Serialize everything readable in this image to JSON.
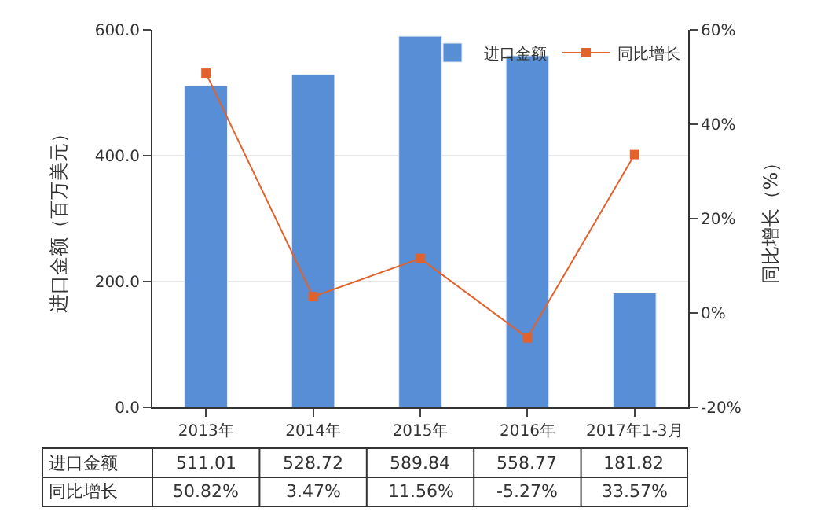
{
  "chart_data": {
    "type": "bar",
    "categories": [
      "2013年",
      "2014年",
      "2015年",
      "2016年",
      "2017年1-3月"
    ],
    "series": [
      {
        "name": "进口金额",
        "color": "#588ed5",
        "values": [
          511.01,
          528.72,
          589.84,
          558.77,
          181.82
        ],
        "value_labels": [
          "511.01",
          "528.72",
          "589.84",
          "558.77",
          "181.82"
        ]
      },
      {
        "name": "同比增长",
        "type": "line",
        "axis": "y2",
        "color": "#e2622c",
        "marker": "square",
        "values": [
          50.82,
          3.47,
          11.56,
          -5.27,
          33.57
        ],
        "value_labels": [
          "50.82%",
          "3.47%",
          "11.56%",
          "-5.27%",
          "33.57%"
        ]
      }
    ],
    "ylabel": "进口金额（百万美元）",
    "y2label": "同比增长（%）",
    "ylim": [
      0,
      600
    ],
    "yticks": [
      {
        "value": 0,
        "label": "0.0"
      },
      {
        "value": 200,
        "label": "200.0"
      },
      {
        "value": 400,
        "label": "400.0"
      },
      {
        "value": 600,
        "label": "600.0"
      }
    ],
    "y2lim": [
      -20,
      60
    ],
    "y2ticks": [
      {
        "value": -20,
        "label": "-20%"
      },
      {
        "value": 0,
        "label": "0%"
      },
      {
        "value": 20,
        "label": "20%"
      },
      {
        "value": 40,
        "label": "40%"
      },
      {
        "value": 60,
        "label": "60%"
      }
    ],
    "grid": "y",
    "legend": "top right"
  }
}
